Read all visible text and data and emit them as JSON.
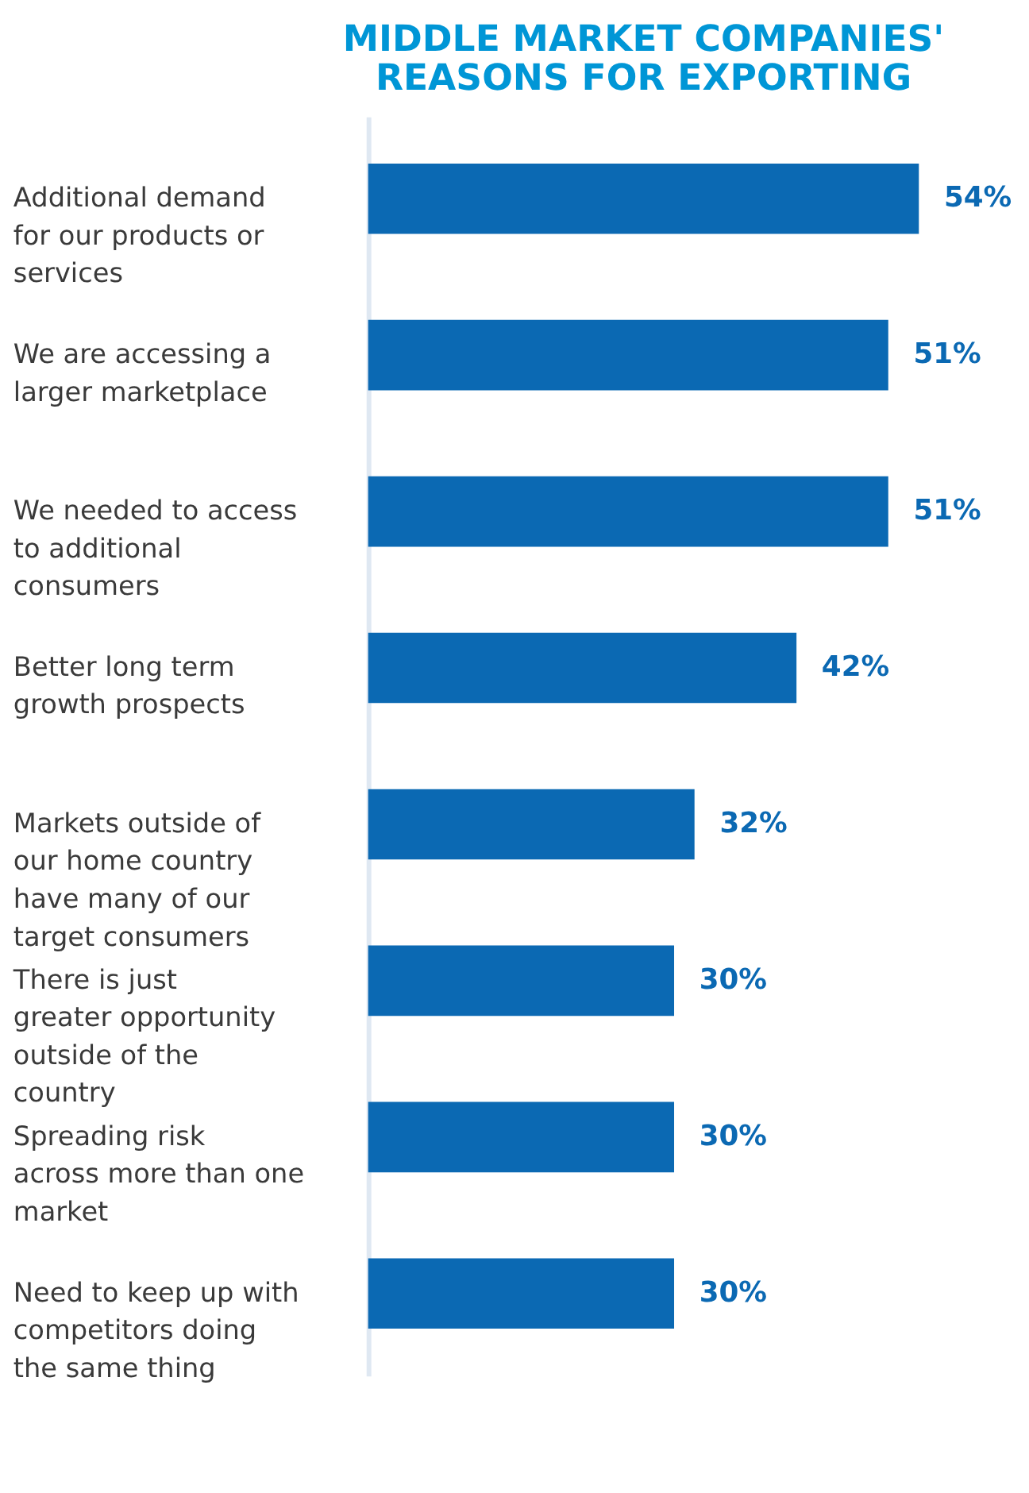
{
  "chart_data": {
    "type": "bar",
    "orientation": "horizontal",
    "title": "MIDDLE MARKET COMPANIES' REASONS FOR EXPORTING",
    "categories": [
      "Additional demand for our products or services",
      "We are accessing a larger marketplace",
      "We needed to access to additional consumers",
      "Better long term growth prospects",
      "Markets outside of our home country have many of our target consumers",
      "There is just greater opportunity outside of the country",
      "Spreading risk across more than one market",
      "Need to keep up with competitors doing the same thing"
    ],
    "values": [
      54,
      51,
      51,
      42,
      32,
      30,
      30,
      30
    ],
    "value_labels": [
      "54%",
      "51%",
      "51%",
      "42%",
      "32%",
      "30%",
      "30%",
      "30%"
    ],
    "color": "#0b69b3"
  }
}
